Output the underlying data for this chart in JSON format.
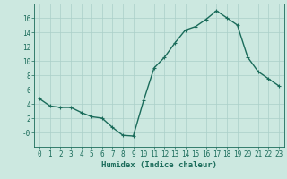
{
  "x": [
    0,
    1,
    2,
    3,
    4,
    5,
    6,
    7,
    8,
    9,
    10,
    11,
    12,
    13,
    14,
    15,
    16,
    17,
    18,
    19,
    20,
    21,
    22,
    23
  ],
  "y": [
    4.7,
    3.7,
    3.5,
    3.5,
    2.8,
    2.2,
    2.0,
    0.7,
    -0.4,
    -0.5,
    4.5,
    9.0,
    10.5,
    12.5,
    14.3,
    14.8,
    15.8,
    17.0,
    16.0,
    15.0,
    10.5,
    8.5,
    7.5,
    6.5
  ],
  "line_color": "#1a6b5a",
  "marker": "+",
  "marker_size": 3,
  "bg_color": "#cce8e0",
  "grid_color": "#aacfc8",
  "xlabel": "Humidex (Indice chaleur)",
  "xlim": [
    -0.5,
    23.5
  ],
  "ylim": [
    -2,
    18
  ],
  "yticks": [
    0,
    2,
    4,
    6,
    8,
    10,
    12,
    14,
    16
  ],
  "ytick_labels": [
    "-0",
    "2",
    "4",
    "6",
    "8",
    "10",
    "12",
    "14",
    "16"
  ],
  "xticks": [
    0,
    1,
    2,
    3,
    4,
    5,
    6,
    7,
    8,
    9,
    10,
    11,
    12,
    13,
    14,
    15,
    16,
    17,
    18,
    19,
    20,
    21,
    22,
    23
  ],
  "axis_fontsize": 6.5,
  "tick_fontsize": 5.5,
  "line_width": 1.0
}
